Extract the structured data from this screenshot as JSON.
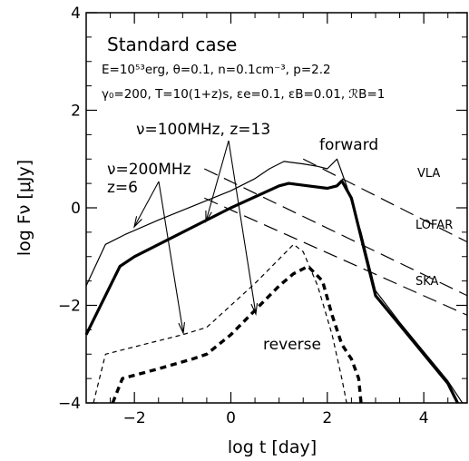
{
  "chart_data": {
    "type": "line",
    "xlabel": "log t [day]",
    "ylabel": "log Fν [μJy]",
    "xlim": [
      -3,
      4.9
    ],
    "ylim": [
      -4,
      4
    ],
    "xticks_major": [
      -2,
      0,
      2,
      4
    ],
    "yticks_major": [
      -4,
      -2,
      0,
      2,
      4
    ],
    "grid": false,
    "legend": "none",
    "text": {
      "case_title": "Standard case",
      "params_line1": "E=10⁵³erg, θ=0.1, n=0.1cm⁻³, p=2.2",
      "params_line2": "γ₀=200, T=10(1+z)s, εe=0.1, εB=0.01, ℛB=1",
      "label_100mhz": "ν=100MHz, z=13",
      "label_200mhz_a": "ν=200MHz",
      "label_200mhz_b": "z=6",
      "label_forward": "forward",
      "label_reverse": "reverse",
      "label_vla": "VLA",
      "label_lofar": "LOFAR",
      "label_ska": "SKA"
    },
    "series": [
      {
        "style": "thin-solid",
        "x": [
          -3.0,
          -2.6,
          -2.2,
          -1.5,
          -1.0,
          -0.5,
          0.0,
          0.5,
          0.8,
          1.1,
          1.5,
          1.8,
          2.0,
          2.2,
          2.4,
          2.7,
          3.0,
          3.5,
          4.0,
          4.5,
          4.8
        ],
        "y": [
          -1.6,
          -0.75,
          -0.55,
          -0.25,
          -0.05,
          0.15,
          0.35,
          0.6,
          0.8,
          0.95,
          0.9,
          0.85,
          0.8,
          1.0,
          0.45,
          -0.5,
          -1.7,
          -2.35,
          -2.95,
          -3.55,
          -4.0
        ]
      },
      {
        "style": "thick-solid",
        "x": [
          -3.0,
          -2.3,
          -2.0,
          -1.0,
          0.0,
          1.0,
          1.2,
          1.6,
          2.0,
          2.2,
          2.3,
          2.5,
          2.7,
          3.0,
          3.5,
          4.0,
          4.5,
          4.7
        ],
        "y": [
          -2.6,
          -1.2,
          -1.0,
          -0.5,
          0.0,
          0.45,
          0.5,
          0.45,
          0.4,
          0.45,
          0.55,
          0.2,
          -0.6,
          -1.8,
          -2.4,
          -3.0,
          -3.6,
          -4.0
        ]
      },
      {
        "style": "thin-dashed",
        "x": [
          -2.85,
          -2.6,
          -2.0,
          -1.0,
          -0.5,
          0.0,
          0.5,
          1.0,
          1.3,
          1.5,
          1.8,
          2.1,
          2.3,
          2.4
        ],
        "y": [
          -4.0,
          -3.0,
          -2.85,
          -2.6,
          -2.45,
          -2.0,
          -1.55,
          -1.05,
          -0.75,
          -0.9,
          -1.6,
          -2.6,
          -3.5,
          -4.0
        ]
      },
      {
        "style": "thick-dashed",
        "x": [
          -2.45,
          -2.25,
          -1.5,
          -0.8,
          -0.5,
          0.0,
          0.5,
          1.0,
          1.3,
          1.6,
          1.9,
          2.1,
          2.3,
          2.5,
          2.65,
          2.7
        ],
        "y": [
          -4.0,
          -3.5,
          -3.3,
          -3.1,
          -3.0,
          -2.6,
          -2.1,
          -1.6,
          -1.35,
          -1.2,
          -1.5,
          -2.2,
          -2.8,
          -3.1,
          -3.5,
          -4.0
        ]
      }
    ],
    "sensitivity_lines": [
      {
        "name": "VLA",
        "x": [
          1.5,
          4.9
        ],
        "y": [
          1.0,
          -0.7
        ]
      },
      {
        "name": "LOFAR",
        "x": [
          -0.55,
          4.9
        ],
        "y": [
          0.8,
          -1.8
        ]
      },
      {
        "name": "SKA",
        "x": [
          -0.55,
          4.9
        ],
        "y": [
          0.2,
          -2.2
        ]
      }
    ]
  }
}
